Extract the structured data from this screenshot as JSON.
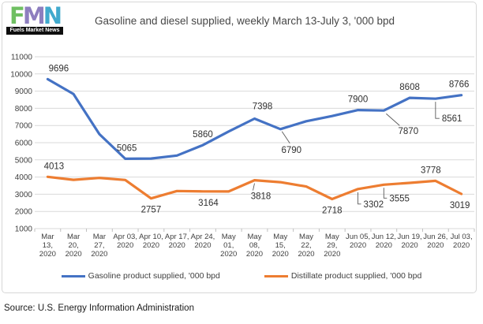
{
  "logo": {
    "letters": [
      "F",
      "M",
      "N"
    ],
    "tagline": "Fuels Market News"
  },
  "source_note": "Source: U.S. Energy Information Administration",
  "colors": {
    "gasoline": "#4472C4",
    "distillate": "#ED7D31",
    "grid": "#D9D9D9",
    "axis": "#BFBFBF",
    "axis_text": "#404040",
    "data_label_text": "#303030",
    "leader_line": "#595959"
  },
  "chart_data": {
    "type": "line",
    "title": "Gasoline and diesel supplied, weekly March 13-July 3, '000 bpd",
    "xlabel": "",
    "ylabel": "",
    "ylim": [
      1000,
      11000
    ],
    "yticks": [
      1000,
      2000,
      3000,
      4000,
      5000,
      6000,
      7000,
      8000,
      9000,
      10000,
      11000
    ],
    "grid": true,
    "legend_position": "bottom",
    "categories": [
      "Mar 13, 2020",
      "Mar 20, 2020",
      "Mar 27, 2020",
      "Apr 03, 2020",
      "Apr 10, 2020",
      "Apr 17, 2020",
      "Apr 24, 2020",
      "May 01, 2020",
      "May 08, 2020",
      "May 15, 2020",
      "May 22, 2020",
      "May 29, 2020",
      "Jun 05, 2020",
      "Jun 12, 2020",
      "Jun 19, 2020",
      "Jun 26, 2020",
      "Jul 03, 2020"
    ],
    "category_label_lines": [
      [
        "Mar",
        "13,",
        "2020"
      ],
      [
        "Mar",
        "20,",
        "2020"
      ],
      [
        "Mar",
        "27,",
        "2020"
      ],
      [
        "Apr 03,",
        "2020"
      ],
      [
        "Apr 10,",
        "2020"
      ],
      [
        "Apr 17,",
        "2020"
      ],
      [
        "Apr 24,",
        "2020"
      ],
      [
        "May",
        "01,",
        "2020"
      ],
      [
        "May",
        "08,",
        "2020"
      ],
      [
        "May",
        "15,",
        "2020"
      ],
      [
        "May",
        "22,",
        "2020"
      ],
      [
        "May",
        "29,",
        "2020"
      ],
      [
        "Jun 05,",
        "2020"
      ],
      [
        "Jun 12,",
        "2020"
      ],
      [
        "Jun 19,",
        "2020"
      ],
      [
        "Jun 26,",
        "2020"
      ],
      [
        "Jul 03,",
        "2020"
      ]
    ],
    "series": [
      {
        "name": "Gasoline product supplied, '000 bpd",
        "color": "#4472C4",
        "values": [
          9696,
          8830,
          6500,
          5065,
          5080,
          5250,
          5860,
          6650,
          7398,
          6790,
          7250,
          7550,
          7900,
          7870,
          8608,
          8561,
          8766
        ],
        "labels": [
          {
            "index": 0,
            "text": "9696",
            "pos": "above"
          },
          {
            "index": 3,
            "text": "5065",
            "pos": "above"
          },
          {
            "index": 6,
            "text": "5860",
            "pos": "above"
          },
          {
            "index": 8,
            "text": "7398",
            "pos": "above"
          },
          {
            "index": 9,
            "text": "6790",
            "pos": "leader"
          },
          {
            "index": 12,
            "text": "7900",
            "pos": "above"
          },
          {
            "index": 13,
            "text": "7870",
            "pos": "leader"
          },
          {
            "index": 14,
            "text": "8608",
            "pos": "above"
          },
          {
            "index": 15,
            "text": "8561",
            "pos": "leader"
          },
          {
            "index": 16,
            "text": "8766",
            "pos": "above"
          }
        ]
      },
      {
        "name": "Distillate product supplied, '000 bpd",
        "color": "#ED7D31",
        "values": [
          4013,
          3840,
          3950,
          3830,
          2757,
          3190,
          3164,
          3160,
          3818,
          3700,
          3450,
          2718,
          3302,
          3555,
          3660,
          3778,
          3019
        ],
        "labels": [
          {
            "index": 0,
            "text": "4013",
            "pos": "above"
          },
          {
            "index": 4,
            "text": "2757",
            "pos": "below"
          },
          {
            "index": 6,
            "text": "3164",
            "pos": "below"
          },
          {
            "index": 8,
            "text": "3818",
            "pos": "leader"
          },
          {
            "index": 11,
            "text": "2718",
            "pos": "below"
          },
          {
            "index": 12,
            "text": "3302",
            "pos": "leader"
          },
          {
            "index": 13,
            "text": "3555",
            "pos": "leader"
          },
          {
            "index": 15,
            "text": "3778",
            "pos": "above"
          },
          {
            "index": 16,
            "text": "3019",
            "pos": "below"
          }
        ]
      }
    ]
  }
}
